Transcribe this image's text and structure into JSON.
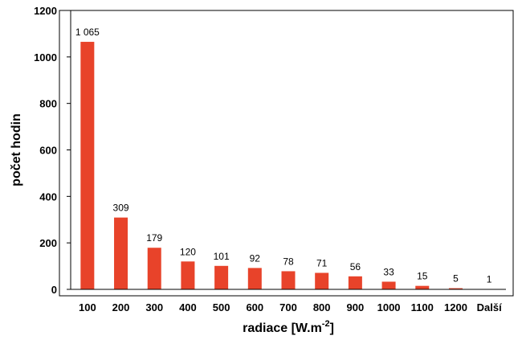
{
  "chart_data": {
    "type": "bar",
    "categories": [
      "100",
      "200",
      "300",
      "400",
      "500",
      "600",
      "700",
      "800",
      "900",
      "1000",
      "1100",
      "1200",
      "Další"
    ],
    "values": [
      1065,
      309,
      179,
      120,
      101,
      92,
      78,
      71,
      56,
      33,
      15,
      5,
      1
    ],
    "value_labels": [
      "1 065",
      "309",
      "179",
      "120",
      "101",
      "92",
      "78",
      "71",
      "56",
      "33",
      "15",
      "5",
      "1"
    ],
    "title": "",
    "xlabel": "radiace [W.m",
    "xlabel_sup": "-2",
    "xlabel_end": "]",
    "ylabel": "počet hodin",
    "ylim": [
      0,
      1200
    ],
    "yticks": [
      0,
      200,
      400,
      600,
      800,
      1000,
      1200
    ],
    "ytick_labels": [
      "0",
      "200",
      "400",
      "600",
      "800",
      "1000",
      "1200"
    ],
    "grid": false,
    "bar_color": "#e8432a"
  }
}
